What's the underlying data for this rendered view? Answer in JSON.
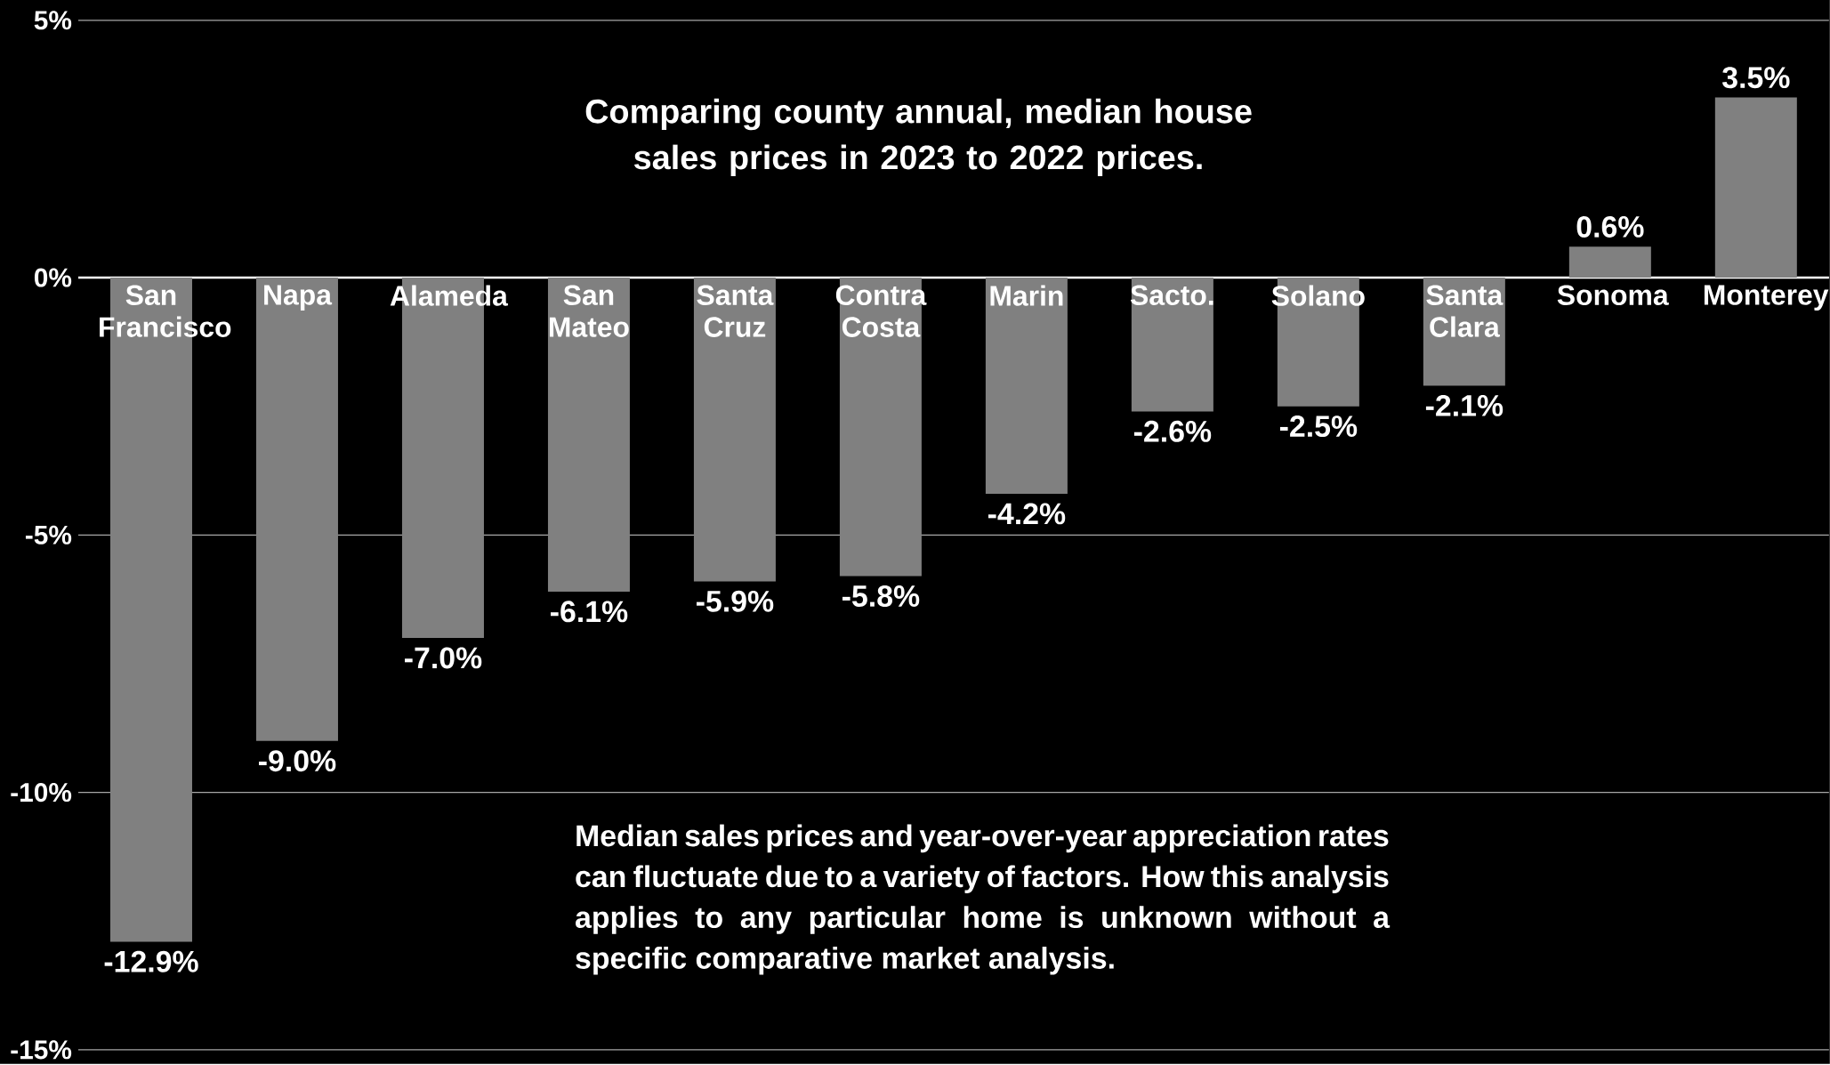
{
  "chart_data": {
    "type": "bar",
    "title": "Comparing county annual, median house sales prices in 2023 to 2022 prices.",
    "annotations": [
      "Median sales prices and year-over-year appreciation rates can fluctuate due to a variety of factors. How this analysis applies to any particular home is unknown without a specific comparative market analysis."
    ],
    "categories": [
      "San Francisco",
      "Napa",
      "Alameda",
      "San Mateo",
      "Santa Cruz",
      "Contra Costa",
      "Marin",
      "Sacto.",
      "Solano",
      "Santa Clara",
      "Sonoma",
      "Monterey"
    ],
    "values": [
      -12.9,
      -9.0,
      -7.0,
      -6.1,
      -5.9,
      -5.8,
      -4.2,
      -2.6,
      -2.5,
      -2.1,
      0.6,
      3.5
    ],
    "value_labels": [
      "-12.9%",
      "-9.0%",
      "-7.0%",
      "-6.1%",
      "-5.9%",
      "-5.8%",
      "-4.2%",
      "-2.6%",
      "-2.5%",
      "-2.1%",
      "0.6%",
      "3.5%"
    ],
    "color": "#808080",
    "ylim": [
      -15,
      5
    ],
    "yticks": [
      {
        "value": -15,
        "label": "-15%"
      },
      {
        "value": -10,
        "label": "-10%"
      },
      {
        "value": -5,
        "label": "-5%"
      },
      {
        "value": 0,
        "label": "0%"
      },
      {
        "value": 5,
        "label": "5%"
      }
    ],
    "grid": "y"
  }
}
